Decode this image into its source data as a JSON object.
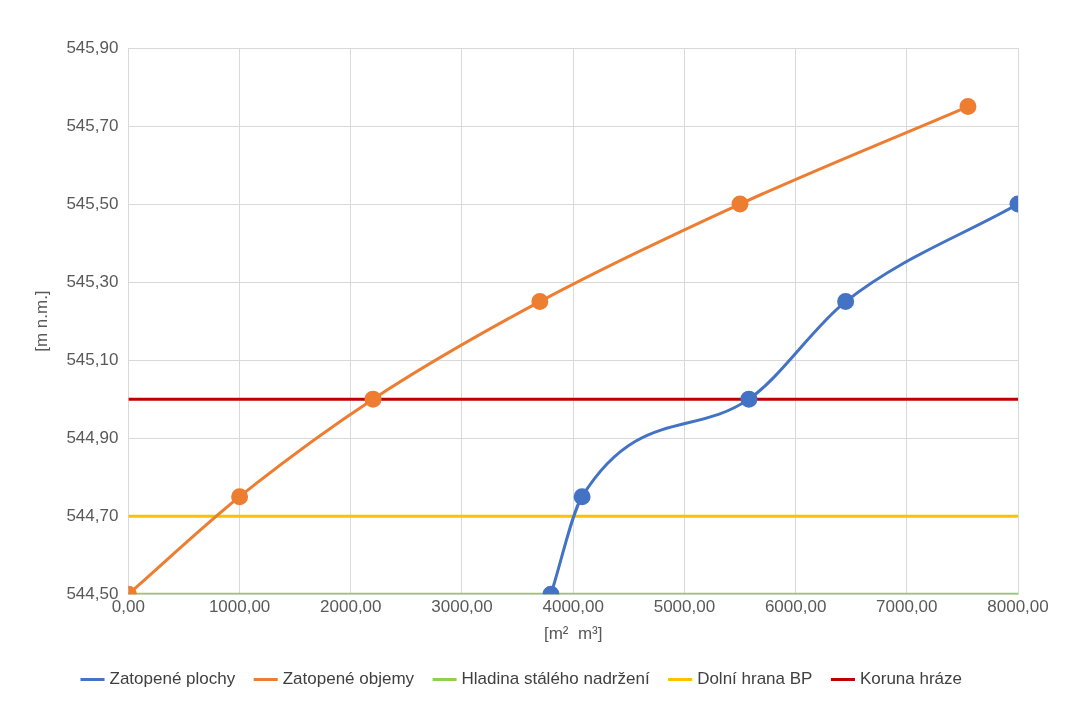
{
  "chart_data": {
    "type": "line",
    "xlabel": "[m²  m³]",
    "ylabel": "[m n.m.]",
    "xlim": [
      0,
      8000
    ],
    "ylim": [
      544.5,
      545.9
    ],
    "xticks": [
      {
        "value": 0,
        "label": "0,00"
      },
      {
        "value": 1000,
        "label": "1000,00"
      },
      {
        "value": 2000,
        "label": "2000,00"
      },
      {
        "value": 3000,
        "label": "3000,00"
      },
      {
        "value": 4000,
        "label": "4000,00"
      },
      {
        "value": 5000,
        "label": "5000,00"
      },
      {
        "value": 6000,
        "label": "6000,00"
      },
      {
        "value": 7000,
        "label": "7000,00"
      },
      {
        "value": 8000,
        "label": "8000,00"
      }
    ],
    "yticks": [
      {
        "value": 544.5,
        "label": "544,50"
      },
      {
        "value": 544.7,
        "label": "544,70"
      },
      {
        "value": 544.9,
        "label": "544,90"
      },
      {
        "value": 545.1,
        "label": "545,10"
      },
      {
        "value": 545.3,
        "label": "545,30"
      },
      {
        "value": 545.5,
        "label": "545,50"
      },
      {
        "value": 545.7,
        "label": "545,70"
      },
      {
        "value": 545.9,
        "label": "545,90"
      }
    ],
    "grid": true,
    "legend": "bottom",
    "marker": "circle",
    "line_style": "solid",
    "series": [
      {
        "name": "Zatopené plochy",
        "color": "#4472c4",
        "x": [
          3800,
          4080,
          5580,
          6450,
          8000
        ],
        "values": [
          544.5,
          544.75,
          545.0,
          545.25,
          545.5
        ]
      },
      {
        "name": "Zatopené objemy",
        "color": "#ed7d31",
        "x": [
          0,
          1000,
          2200,
          3700,
          5500,
          7550
        ],
        "values": [
          544.5,
          544.75,
          545.0,
          545.25,
          545.5,
          545.75
        ]
      },
      {
        "name": "Hladina stálého nadržení",
        "color": "#92d050",
        "marker": "none",
        "x": [
          0,
          8000
        ],
        "values": [
          544.5,
          544.5
        ]
      },
      {
        "name": "Dolní hrana BP",
        "color": "#ffc000",
        "marker": "none",
        "x": [
          0,
          8000
        ],
        "values": [
          544.7,
          544.7
        ]
      },
      {
        "name": "Koruna hráze",
        "color": "#c00000",
        "marker": "none",
        "x": [
          0,
          8000
        ],
        "values": [
          545.0,
          545.0
        ]
      }
    ]
  }
}
